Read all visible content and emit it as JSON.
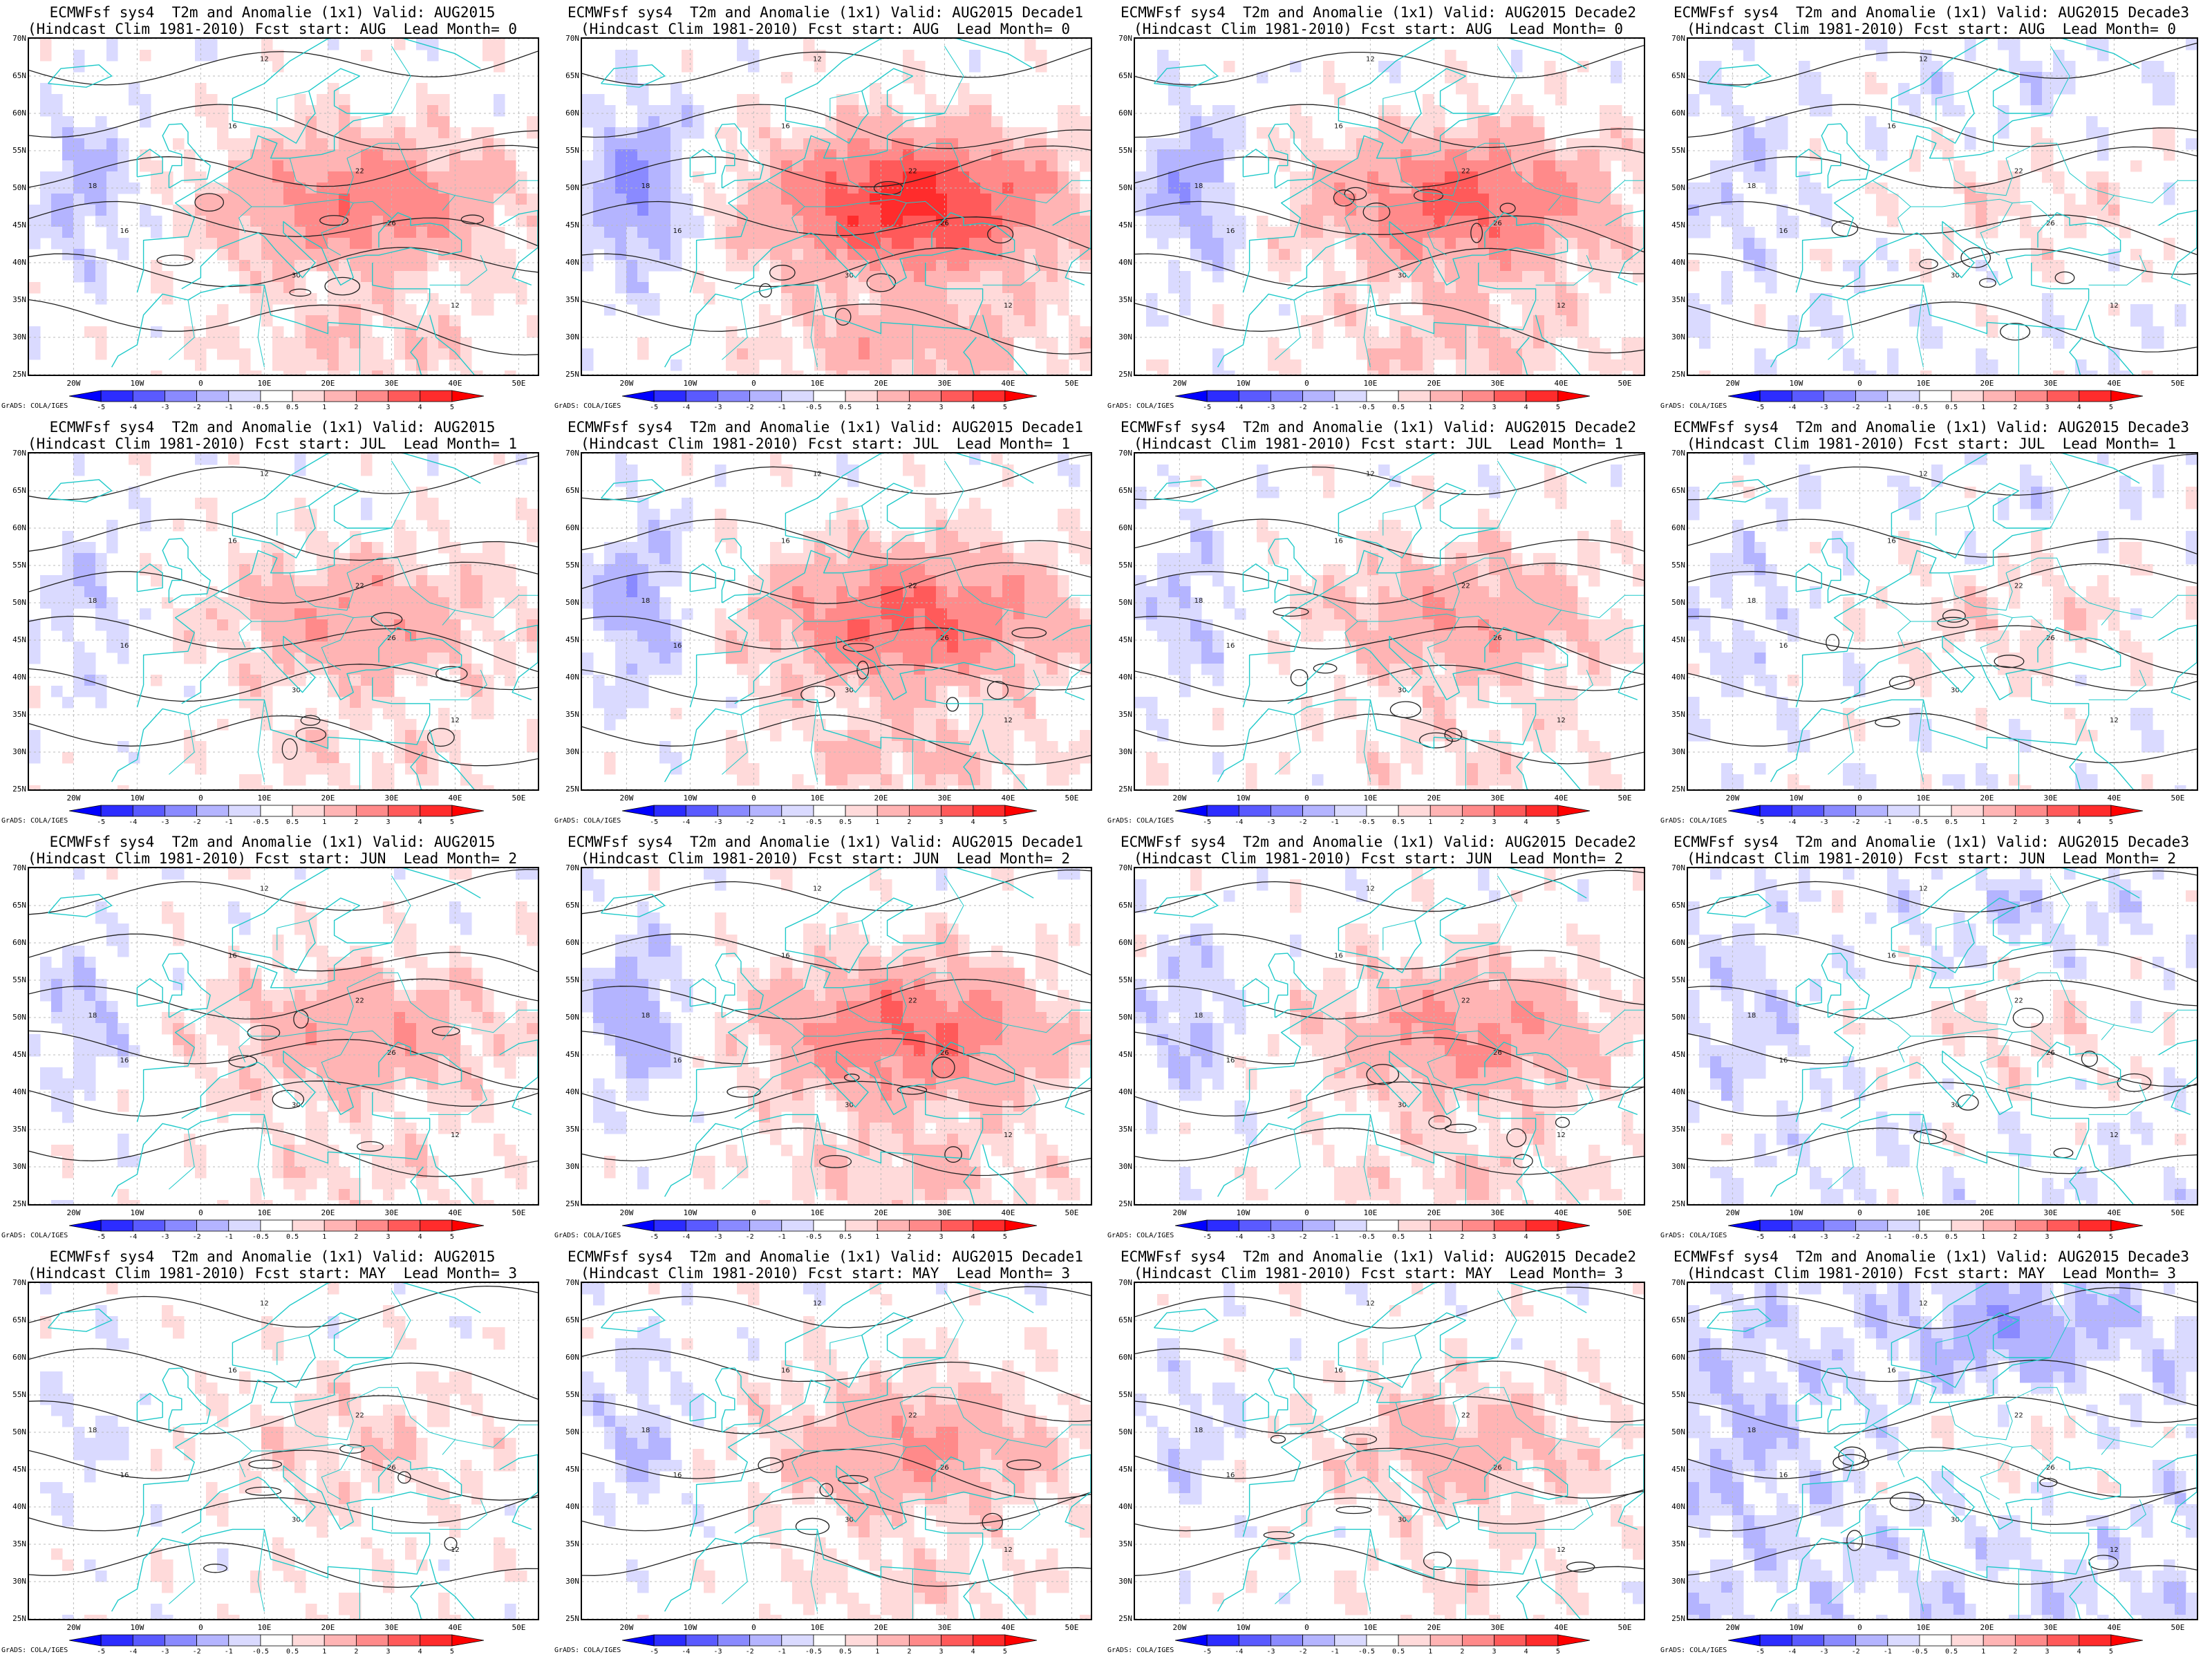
{
  "layout": {
    "rows": 4,
    "cols": 4
  },
  "axes": {
    "lat_labels": [
      "70N",
      "65N",
      "60N",
      "55N",
      "50N",
      "45N",
      "40N",
      "35N",
      "30N",
      "25N"
    ],
    "lon_labels": [
      "20W",
      "10W",
      "0",
      "10E",
      "20E",
      "30E",
      "40E",
      "50E"
    ],
    "lat_range": [
      25,
      70
    ],
    "lon_range": [
      -27,
      53
    ]
  },
  "colorbar": {
    "labels": [
      "-5",
      "-4",
      "-3",
      "-2",
      "-1",
      "-0.5",
      "0.5",
      "1",
      "2",
      "3",
      "4",
      "5"
    ],
    "colors": [
      "#0000ff",
      "#2c2cff",
      "#5a5aff",
      "#8a8aff",
      "#b4b4ff",
      "#dadaff",
      "#ffffff",
      "#ffdada",
      "#ffb4b4",
      "#ff8a8a",
      "#ff5a5a",
      "#ff2c2c",
      "#ff0000"
    ]
  },
  "credit": "GrADS: COLA/IGES",
  "contour_labels": [
    "12",
    "16",
    "18",
    "22",
    "26",
    "30"
  ],
  "panels": [
    {
      "title1": "ECMWFsf sys4  T2m and Anomalie (1x1) Valid: AUG2015",
      "title2": "(Hindcast Clim 1981-2010) Fcst start: AUG  Lead Month= 0",
      "bias": 1.6,
      "seed": 1
    },
    {
      "title1": "ECMWFsf sys4  T2m and Anomalie (1x1) Valid: AUG2015 Decade1",
      "title2": "(Hindcast Clim 1981-2010) Fcst start: AUG  Lead Month= 0",
      "bias": 2.6,
      "seed": 2
    },
    {
      "title1": "ECMWFsf sys4  T2m and Anomalie (1x1) Valid: AUG2015 Decade2",
      "title2": "(Hindcast Clim 1981-2010) Fcst start: AUG  Lead Month= 0",
      "bias": 1.9,
      "seed": 3
    },
    {
      "title1": "ECMWFsf sys4  T2m and Anomalie (1x1) Valid: AUG2015 Decade3",
      "title2": "(Hindcast Clim 1981-2010) Fcst start: AUG  Lead Month= 0",
      "bias": -0.3,
      "seed": 4
    },
    {
      "title1": "ECMWFsf sys4  T2m and Anomalie (1x1) Valid: AUG2015",
      "title2": "(Hindcast Clim 1981-2010) Fcst start: JUL  Lead Month= 1",
      "bias": 1.1,
      "seed": 5
    },
    {
      "title1": "ECMWFsf sys4  T2m and Anomalie (1x1) Valid: AUG2015 Decade1",
      "title2": "(Hindcast Clim 1981-2010) Fcst start: JUL  Lead Month= 1",
      "bias": 1.9,
      "seed": 6
    },
    {
      "title1": "ECMWFsf sys4  T2m and Anomalie (1x1) Valid: AUG2015 Decade2",
      "title2": "(Hindcast Clim 1981-2010) Fcst start: JUL  Lead Month= 1",
      "bias": 1.1,
      "seed": 7
    },
    {
      "title1": "ECMWFsf sys4  T2m and Anomalie (1x1) Valid: AUG2015 Decade3",
      "title2": "(Hindcast Clim 1981-2010) Fcst start: JUL  Lead Month= 1",
      "bias": -0.2,
      "seed": 8
    },
    {
      "title1": "ECMWFsf sys4  T2m and Anomalie (1x1) Valid: AUG2015",
      "title2": "(Hindcast Clim 1981-2010) Fcst start: JUN  Lead Month= 2",
      "bias": 1.1,
      "seed": 9
    },
    {
      "title1": "ECMWFsf sys4  T2m and Anomalie (1x1) Valid: AUG2015 Decade1",
      "title2": "(Hindcast Clim 1981-2010) Fcst start: JUN  Lead Month= 2",
      "bias": 1.8,
      "seed": 10
    },
    {
      "title1": "ECMWFsf sys4  T2m and Anomalie (1x1) Valid: AUG2015 Decade2",
      "title2": "(Hindcast Clim 1981-2010) Fcst start: JUN  Lead Month= 2",
      "bias": 1.3,
      "seed": 11
    },
    {
      "title1": "ECMWFsf sys4  T2m and Anomalie (1x1) Valid: AUG2015 Decade3",
      "title2": "(Hindcast Clim 1981-2010) Fcst start: JUN  Lead Month= 2",
      "bias": -0.4,
      "seed": 12
    },
    {
      "title1": "ECMWFsf sys4  T2m and Anomalie (1x1) Valid: AUG2015",
      "title2": "(Hindcast Clim 1981-2010) Fcst start: MAY  Lead Month= 3",
      "bias": 0.5,
      "seed": 13
    },
    {
      "title1": "ECMWFsf sys4  T2m and Anomalie (1x1) Valid: AUG2015 Decade1",
      "title2": "(Hindcast Clim 1981-2010) Fcst start: MAY  Lead Month= 3",
      "bias": 1.2,
      "seed": 14
    },
    {
      "title1": "ECMWFsf sys4  T2m and Anomalie (1x1) Valid: AUG2015 Decade2",
      "title2": "(Hindcast Clim 1981-2010) Fcst start: MAY  Lead Month= 3",
      "bias": 0.8,
      "seed": 15
    },
    {
      "title1": "ECMWFsf sys4  T2m and Anomalie (1x1) Valid: AUG2015 Decade3",
      "title2": "(Hindcast Clim 1981-2010) Fcst start: MAY  Lead Month= 3",
      "bias": -0.9,
      "seed": 16
    }
  ]
}
